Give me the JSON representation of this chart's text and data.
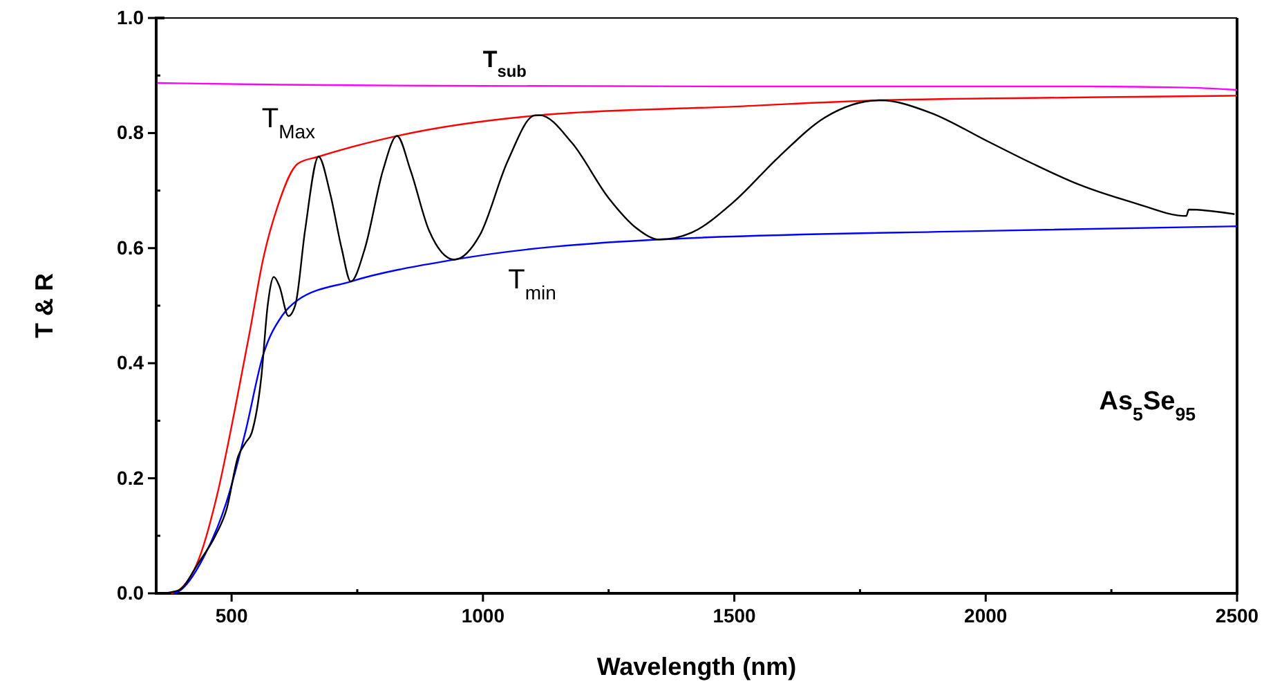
{
  "chart_data": {
    "type": "line",
    "xlabel": "Wavelength (nm)",
    "ylabel": "T & R",
    "xlim": [
      350,
      2500
    ],
    "ylim": [
      0,
      1
    ],
    "xticks": [
      500,
      {
        "value": 750,
        "label": null
      },
      1000,
      {
        "value": 1250,
        "label": null
      },
      1500,
      {
        "value": 1750,
        "label": null
      },
      2000,
      {
        "value": 2250,
        "label": null
      },
      2500
    ],
    "yticks": [
      {
        "value": 0,
        "label": "0.0"
      },
      {
        "value": 0.1,
        "label": null
      },
      0.2,
      {
        "value": 0.3,
        "label": null
      },
      0.4,
      {
        "value": 0.5,
        "label": null
      },
      0.6,
      {
        "value": 0.7,
        "label": null
      },
      0.8,
      {
        "value": 0.9,
        "label": null
      },
      {
        "value": 1,
        "label": "1.0"
      }
    ],
    "grid": false,
    "legend": false,
    "marker": "none",
    "line_style": "solid",
    "annotations": [
      "As$_{5}$Se$_{95}$"
    ],
    "series": [
      {
        "name": "T$_{sub}$",
        "color": "#ff00ff",
        "x": [
          352,
          600,
          1000,
          1500,
          2000,
          2200,
          2400,
          2500
        ],
        "values": [
          0.887,
          0.884,
          0.882,
          0.881,
          0.881,
          0.881,
          0.879,
          0.875
        ]
      },
      {
        "name": "T$_{Max}$",
        "color": "#ff0000",
        "x": [
          380,
          394,
          435,
          472,
          508,
          536,
          563,
          591,
          632,
          673,
          829,
          1113,
          1500,
          1790,
          2200,
          2500
        ],
        "values": [
          0,
          0.005,
          0.06,
          0.174,
          0.326,
          0.454,
          0.582,
          0.671,
          0.747,
          0.759,
          0.795,
          0.831,
          0.846,
          0.857,
          0.862,
          0.865
        ]
      },
      {
        "name": "T$_{min}$",
        "color": "#0000ff",
        "x": [
          385,
          394,
          444,
          490,
          527,
          563,
          600,
          632,
          737,
          943,
          1351,
          2000,
          2500
        ],
        "values": [
          0,
          0.003,
          0.062,
          0.159,
          0.279,
          0.415,
          0.482,
          0.51,
          0.542,
          0.58,
          0.615,
          0.63,
          0.638
        ]
      },
      {
        "color": "#000000",
        "x": [
          362,
          394,
          435,
          467,
          490,
          513,
          528,
          540,
          559,
          572,
          584,
          595,
          613,
          627,
          646,
          673,
          696,
          719,
          737,
          765,
          801,
          829,
          856,
          893,
          943,
          994,
          1049,
          1104,
          1113,
          1177,
          1250,
          1305,
          1351,
          1415,
          1497,
          1589,
          1680,
          1790,
          1891,
          2001,
          2093,
          2184,
          2294,
          2399,
          2404,
          2495
        ],
        "values": [
          0,
          0.005,
          0.054,
          0.099,
          0.146,
          0.238,
          0.262,
          0.279,
          0.375,
          0.502,
          0.55,
          0.534,
          0.482,
          0.502,
          0.63,
          0.759,
          0.695,
          0.599,
          0.542,
          0.599,
          0.735,
          0.795,
          0.735,
          0.63,
          0.58,
          0.623,
          0.751,
          0.831,
          0.831,
          0.783,
          0.687,
          0.635,
          0.615,
          0.627,
          0.679,
          0.759,
          0.827,
          0.857,
          0.835,
          0.787,
          0.747,
          0.711,
          0.679,
          0.656,
          0.667,
          0.659
        ]
      }
    ]
  }
}
